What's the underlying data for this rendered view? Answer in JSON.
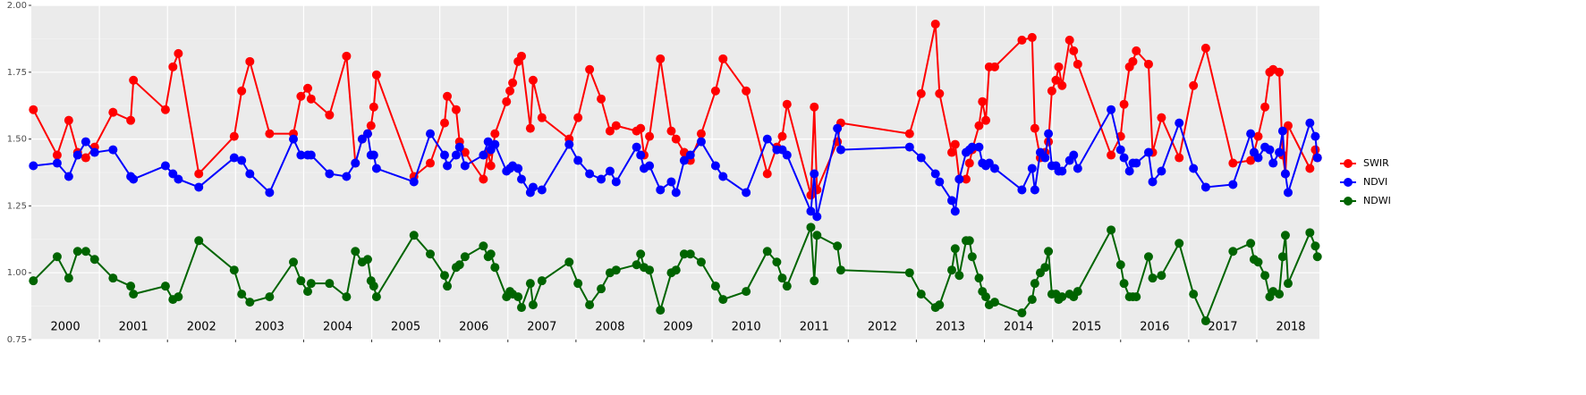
{
  "chart_data": {
    "type": "line",
    "x": [
      2000.03,
      2000.38,
      2000.55,
      2000.68,
      2000.8,
      2000.93,
      2001.2,
      2001.46,
      2001.5,
      2001.97,
      2002.08,
      2002.16,
      2002.46,
      2002.98,
      2003.09,
      2003.21,
      2003.5,
      2003.85,
      2003.96,
      2004.06,
      2004.11,
      2004.38,
      2004.63,
      2004.76,
      2004.86,
      2004.94,
      2004.99,
      2005.03,
      2005.07,
      2005.62,
      2005.86,
      2006.07,
      2006.11,
      2006.24,
      2006.29,
      2006.37,
      2006.64,
      2006.71,
      2006.75,
      2006.81,
      2006.98,
      2007.03,
      2007.07,
      2007.15,
      2007.2,
      2007.33,
      2007.37,
      2007.5,
      2007.9,
      2008.03,
      2008.2,
      2008.37,
      2008.5,
      2008.59,
      2008.89,
      2008.95,
      2009.0,
      2009.08,
      2009.24,
      2009.4,
      2009.47,
      2009.59,
      2009.68,
      2009.84,
      2010.05,
      2010.16,
      2010.5,
      2010.81,
      2010.95,
      2011.03,
      2011.1,
      2011.45,
      2011.5,
      2011.54,
      2011.84,
      2011.89,
      2012.9,
      2013.07,
      2013.28,
      2013.34,
      2013.52,
      2013.57,
      2013.63,
      2013.73,
      2013.78,
      2013.82,
      2013.92,
      2013.97,
      2014.02,
      2014.07,
      2014.15,
      2014.55,
      2014.7,
      2014.74,
      2014.82,
      2014.89,
      2014.94,
      2014.99,
      2015.05,
      2015.09,
      2015.14,
      2015.25,
      2015.31,
      2015.37,
      2015.86,
      2016.0,
      2016.05,
      2016.13,
      2016.18,
      2016.23,
      2016.41,
      2016.47,
      2016.6,
      2016.86,
      2017.07,
      2017.25,
      2017.65,
      2017.91,
      2017.96,
      2018.02,
      2018.12,
      2018.19,
      2018.24,
      2018.33,
      2018.38,
      2018.42,
      2018.46,
      2018.78,
      2018.86,
      2018.89
    ],
    "series": [
      {
        "name": "SWIR",
        "color": "#ff0000",
        "values": [
          1.61,
          1.44,
          1.57,
          1.45,
          1.43,
          1.47,
          1.6,
          1.57,
          1.72,
          1.61,
          1.77,
          1.82,
          1.37,
          1.51,
          1.68,
          1.79,
          1.52,
          1.52,
          1.66,
          1.69,
          1.65,
          1.59,
          1.81,
          1.41,
          1.5,
          1.52,
          1.55,
          1.62,
          1.74,
          1.36,
          1.41,
          1.56,
          1.66,
          1.61,
          1.49,
          1.45,
          1.35,
          1.45,
          1.4,
          1.52,
          1.64,
          1.68,
          1.71,
          1.79,
          1.81,
          1.54,
          1.72,
          1.58,
          1.5,
          1.58,
          1.76,
          1.65,
          1.53,
          1.55,
          1.53,
          1.54,
          1.44,
          1.51,
          1.8,
          1.53,
          1.5,
          1.45,
          1.42,
          1.52,
          1.68,
          1.8,
          1.68,
          1.37,
          1.47,
          1.51,
          1.63,
          1.29,
          1.62,
          1.31,
          1.49,
          1.56,
          1.52,
          1.67,
          1.93,
          1.67,
          1.45,
          1.48,
          1.35,
          1.35,
          1.41,
          1.46,
          1.55,
          1.64,
          1.57,
          1.77,
          1.77,
          1.87,
          1.88,
          1.54,
          1.43,
          1.45,
          1.49,
          1.68,
          1.72,
          1.77,
          1.7,
          1.87,
          1.83,
          1.78,
          1.44,
          1.51,
          1.63,
          1.77,
          1.79,
          1.83,
          1.78,
          1.45,
          1.58,
          1.43,
          1.7,
          1.84,
          1.41,
          1.42,
          1.45,
          1.51,
          1.62,
          1.75,
          1.76,
          1.75,
          1.44,
          1.37,
          1.55,
          1.39,
          1.46,
          1.43
        ]
      },
      {
        "name": "NDVI",
        "color": "#0000ff",
        "values": [
          1.4,
          1.41,
          1.36,
          1.44,
          1.49,
          1.45,
          1.46,
          1.36,
          1.35,
          1.4,
          1.37,
          1.35,
          1.32,
          1.43,
          1.42,
          1.37,
          1.3,
          1.5,
          1.44,
          1.44,
          1.44,
          1.37,
          1.36,
          1.41,
          1.5,
          1.52,
          1.44,
          1.44,
          1.39,
          1.34,
          1.52,
          1.44,
          1.4,
          1.44,
          1.47,
          1.4,
          1.44,
          1.49,
          1.46,
          1.48,
          1.38,
          1.39,
          1.4,
          1.39,
          1.35,
          1.3,
          1.32,
          1.31,
          1.48,
          1.42,
          1.37,
          1.35,
          1.38,
          1.34,
          1.47,
          1.44,
          1.39,
          1.4,
          1.31,
          1.34,
          1.3,
          1.42,
          1.44,
          1.49,
          1.4,
          1.36,
          1.3,
          1.5,
          1.46,
          1.46,
          1.44,
          1.23,
          1.37,
          1.21,
          1.54,
          1.46,
          1.47,
          1.43,
          1.37,
          1.34,
          1.27,
          1.23,
          1.35,
          1.45,
          1.46,
          1.47,
          1.47,
          1.41,
          1.4,
          1.41,
          1.39,
          1.31,
          1.39,
          1.31,
          1.45,
          1.43,
          1.52,
          1.4,
          1.4,
          1.38,
          1.38,
          1.42,
          1.44,
          1.39,
          1.61,
          1.46,
          1.43,
          1.38,
          1.41,
          1.41,
          1.45,
          1.34,
          1.38,
          1.56,
          1.39,
          1.32,
          1.33,
          1.52,
          1.45,
          1.43,
          1.47,
          1.46,
          1.41,
          1.45,
          1.53,
          1.37,
          1.3,
          1.56,
          1.51,
          1.43
        ]
      },
      {
        "name": "NDWI",
        "color": "#006400",
        "values": [
          0.97,
          1.06,
          0.98,
          1.08,
          1.08,
          1.05,
          0.98,
          0.95,
          0.92,
          0.95,
          0.9,
          0.91,
          1.12,
          1.01,
          0.92,
          0.89,
          0.91,
          1.04,
          0.97,
          0.93,
          0.96,
          0.96,
          0.91,
          1.08,
          1.04,
          1.05,
          0.97,
          0.95,
          0.91,
          1.14,
          1.07,
          0.99,
          0.95,
          1.02,
          1.03,
          1.06,
          1.1,
          1.06,
          1.07,
          1.02,
          0.91,
          0.93,
          0.92,
          0.91,
          0.87,
          0.96,
          0.88,
          0.97,
          1.04,
          0.96,
          0.88,
          0.94,
          1.0,
          1.01,
          1.03,
          1.07,
          1.02,
          1.01,
          0.86,
          1.0,
          1.01,
          1.07,
          1.07,
          1.04,
          0.95,
          0.9,
          0.93,
          1.08,
          1.04,
          0.98,
          0.95,
          1.17,
          0.97,
          1.14,
          1.1,
          1.01,
          1.0,
          0.92,
          0.87,
          0.88,
          1.01,
          1.09,
          0.99,
          1.12,
          1.12,
          1.06,
          0.98,
          0.93,
          0.91,
          0.88,
          0.89,
          0.85,
          0.9,
          0.96,
          1.0,
          1.02,
          1.08,
          0.92,
          0.92,
          0.9,
          0.91,
          0.92,
          0.91,
          0.93,
          1.16,
          1.03,
          0.96,
          0.91,
          0.91,
          0.91,
          1.06,
          0.98,
          0.99,
          1.11,
          0.92,
          0.82,
          1.08,
          1.11,
          1.05,
          1.04,
          0.99,
          0.91,
          0.93,
          0.92,
          1.06,
          1.14,
          0.96,
          1.15,
          1.1,
          1.06
        ]
      }
    ],
    "xlim": [
      2000,
      2018.92
    ],
    "xticks": [
      {
        "value": 2000.5,
        "label": "2000"
      },
      {
        "value": 2001.5,
        "label": "2001"
      },
      {
        "value": 2002.5,
        "label": "2002"
      },
      {
        "value": 2003.5,
        "label": "2003"
      },
      {
        "value": 2004.5,
        "label": "2004"
      },
      {
        "value": 2005.5,
        "label": "2005"
      },
      {
        "value": 2006.5,
        "label": "2006"
      },
      {
        "value": 2007.5,
        "label": "2007"
      },
      {
        "value": 2008.5,
        "label": "2008"
      },
      {
        "value": 2009.5,
        "label": "2009"
      },
      {
        "value": 2010.5,
        "label": "2010"
      },
      {
        "value": 2011.5,
        "label": "2011"
      },
      {
        "value": 2012.5,
        "label": "2012"
      },
      {
        "value": 2013.5,
        "label": "2013"
      },
      {
        "value": 2014.5,
        "label": "2014"
      },
      {
        "value": 2015.5,
        "label": "2015"
      },
      {
        "value": 2016.5,
        "label": "2016"
      },
      {
        "value": 2017.5,
        "label": "2017"
      },
      {
        "value": 2018.5,
        "label": "2018"
      }
    ],
    "xgrid": [
      2001,
      2002,
      2003,
      2004,
      2005,
      2006,
      2007,
      2008,
      2009,
      2010,
      2011,
      2012,
      2013,
      2014,
      2015,
      2016,
      2017,
      2018
    ],
    "ylim": [
      0.75,
      2.0
    ],
    "yticks": [
      {
        "value": 0.75,
        "label": "0.75"
      },
      {
        "value": 1.0,
        "label": "1.00"
      },
      {
        "value": 1.25,
        "label": "1.25"
      },
      {
        "value": 1.5,
        "label": "1.50"
      },
      {
        "value": 1.75,
        "label": "1.75"
      },
      {
        "value": 2.0,
        "label": "2.00"
      }
    ],
    "grid": true,
    "legend": "right"
  }
}
